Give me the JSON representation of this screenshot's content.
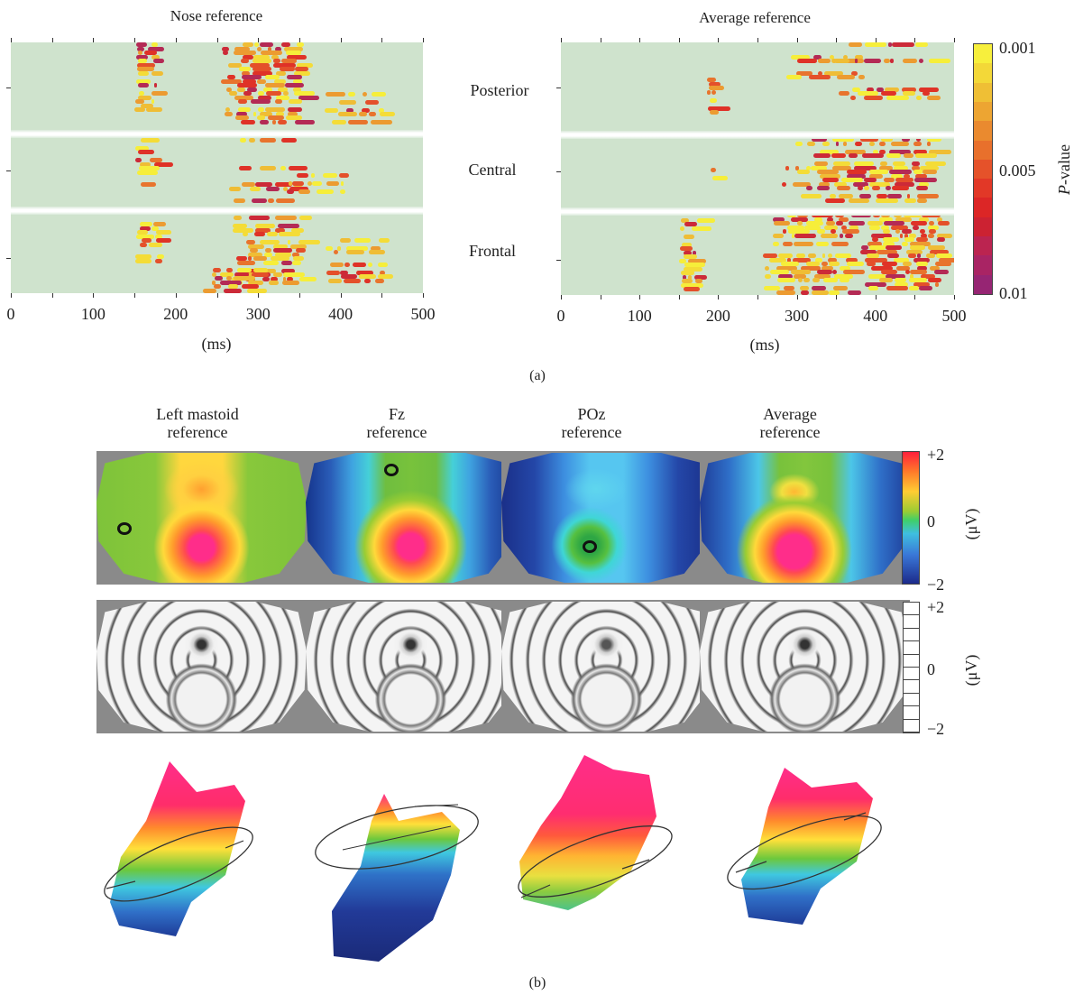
{
  "panel_a": {
    "label": "(a)",
    "left_title": "Nose reference",
    "right_title": "Average reference",
    "row_labels": [
      "Posterior",
      "Central",
      "Frontal"
    ],
    "x_ticks": [
      "0",
      "100",
      "200",
      "300",
      "400",
      "500"
    ],
    "x_unit": "(ms)",
    "colorbar": {
      "label_prefix": "P",
      "label_suffix": "-value",
      "ticks": [
        "0.001",
        "0.005",
        "0.01"
      ],
      "colors": [
        "#f7ef3c",
        "#f3d838",
        "#efbf35",
        "#eda532",
        "#ea8a2f",
        "#e8702c",
        "#e5522a",
        "#e23827",
        "#dc2626",
        "#cc2232",
        "#bb2450",
        "#a92464",
        "#962573"
      ]
    }
  },
  "panel_b": {
    "label": "(b)",
    "columns": [
      {
        "title_line1": "Left mastoid",
        "title_line2": "reference"
      },
      {
        "title_line1": "Fz",
        "title_line2": "reference"
      },
      {
        "title_line1": "POz",
        "title_line2": "reference"
      },
      {
        "title_line1": "Average",
        "title_line2": "reference"
      }
    ],
    "color_scale": {
      "top": "+2",
      "mid": "0",
      "bottom": "−2",
      "unit": "(μV)"
    },
    "gray_scale": {
      "top": "+2",
      "mid": "0",
      "bottom": "−2",
      "unit": "(μV)"
    }
  },
  "chart_data": [
    {
      "type": "heatmap",
      "title": "Nose reference",
      "xlabel": "(ms)",
      "xlim": [
        0,
        500
      ],
      "x_ticks": [
        0,
        100,
        200,
        300,
        400,
        500
      ],
      "row_groups": [
        "Posterior",
        "Central",
        "Frontal"
      ],
      "colorbar_label": "P-value",
      "colorbar_range": [
        0.001,
        0.01
      ],
      "significant_time_windows_ms": [
        [
          150,
          175
        ],
        [
          255,
          350
        ],
        [
          380,
          450
        ]
      ]
    },
    {
      "type": "heatmap",
      "title": "Average reference",
      "xlabel": "(ms)",
      "xlim": [
        0,
        500
      ],
      "x_ticks": [
        0,
        100,
        200,
        300,
        400,
        500
      ],
      "row_groups": [
        "Posterior",
        "Central",
        "Frontal"
      ],
      "colorbar_label": "P-value",
      "colorbar_range": [
        0.001,
        0.01
      ],
      "significant_time_windows_ms": [
        [
          150,
          175
        ],
        [
          190,
          200
        ],
        [
          270,
          370
        ],
        [
          380,
          480
        ]
      ]
    }
  ]
}
